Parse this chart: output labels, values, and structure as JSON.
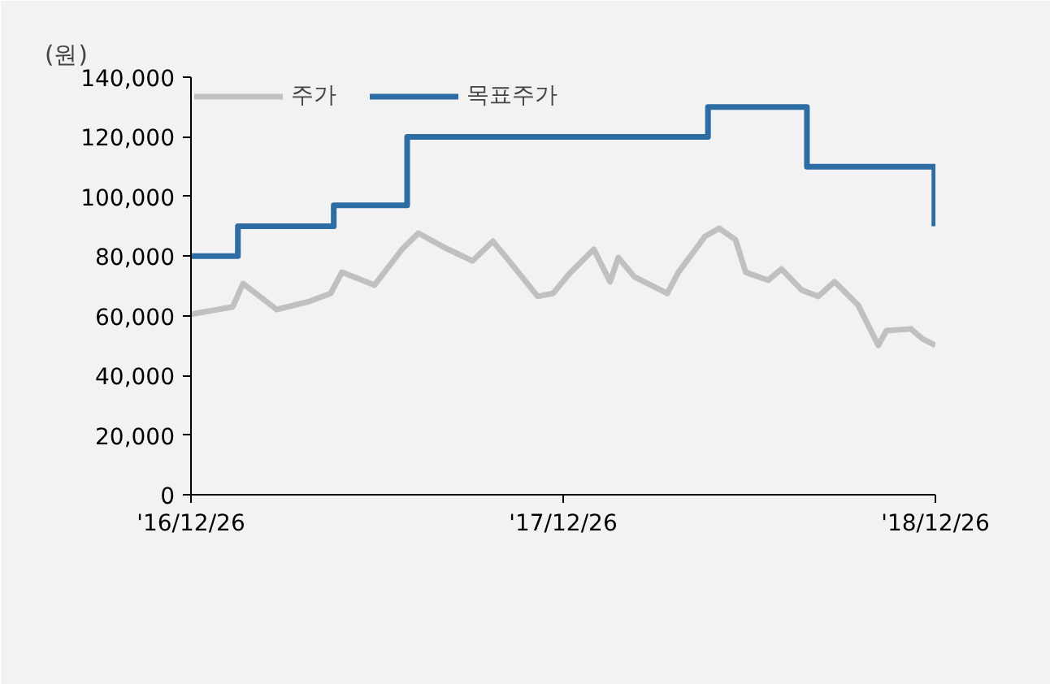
{
  "chart_data": {
    "type": "line",
    "ylabel": "(원)",
    "legend": "top left",
    "grid": false,
    "xlim": [
      "2016-12-26",
      "2018-12-26"
    ],
    "xticks": [
      {
        "value": "2016-12-26",
        "label": "'16/12/26"
      },
      {
        "value": "2017-12-26",
        "label": "'17/12/26"
      },
      {
        "value": "2018-12-26",
        "label": "'18/12/26"
      }
    ],
    "ylim": [
      0,
      140000
    ],
    "yticks": [
      {
        "value": 0,
        "label": "0"
      },
      {
        "value": 20000,
        "label": "20,000"
      },
      {
        "value": 40000,
        "label": "40,000"
      },
      {
        "value": 60000,
        "label": "60,000"
      },
      {
        "value": 80000,
        "label": "80,000"
      },
      {
        "value": 100000,
        "label": "100,000"
      },
      {
        "value": 120000,
        "label": "120,000"
      },
      {
        "value": 140000,
        "label": "140,000"
      }
    ],
    "series": [
      {
        "name": "주가",
        "color": "#c0c0c0",
        "x": [
          "2016-12-26",
          "2017-02-05",
          "2017-02-15",
          "2017-03-20",
          "2017-04-21",
          "2017-05-12",
          "2017-05-23",
          "2017-06-24",
          "2017-07-21",
          "2017-08-06",
          "2017-09-01",
          "2017-09-28",
          "2017-10-18",
          "2017-11-03",
          "2017-12-01",
          "2017-12-16",
          "2018-01-01",
          "2018-01-25",
          "2018-02-10",
          "2018-02-18",
          "2018-03-06",
          "2018-04-07",
          "2018-04-18",
          "2018-05-14",
          "2018-05-28",
          "2018-06-13",
          "2018-06-23",
          "2018-07-15",
          "2018-07-28",
          "2018-08-17",
          "2018-09-02",
          "2018-09-18",
          "2018-10-11",
          "2018-10-31",
          "2018-11-08",
          "2018-12-02",
          "2018-12-13",
          "2018-12-26"
        ],
        "values": [
          60500,
          63000,
          70800,
          62100,
          64800,
          67500,
          74600,
          70300,
          82300,
          87700,
          82800,
          78400,
          85000,
          78400,
          66500,
          67500,
          74100,
          82300,
          71400,
          79500,
          73000,
          67500,
          74600,
          86600,
          89300,
          85500,
          74600,
          71900,
          75700,
          68600,
          66500,
          71400,
          63700,
          50100,
          55000,
          55600,
          52300,
          50100
        ]
      },
      {
        "name": "목표주가",
        "color": "#2e6da4",
        "type": "step",
        "x": [
          "2016-12-26",
          "2017-02-10",
          "2017-05-15",
          "2017-07-26",
          "2018-05-17",
          "2018-08-22",
          "2018-12-25"
        ],
        "values": [
          80000,
          90000,
          97000,
          120000,
          130000,
          110000,
          90000
        ]
      }
    ]
  }
}
